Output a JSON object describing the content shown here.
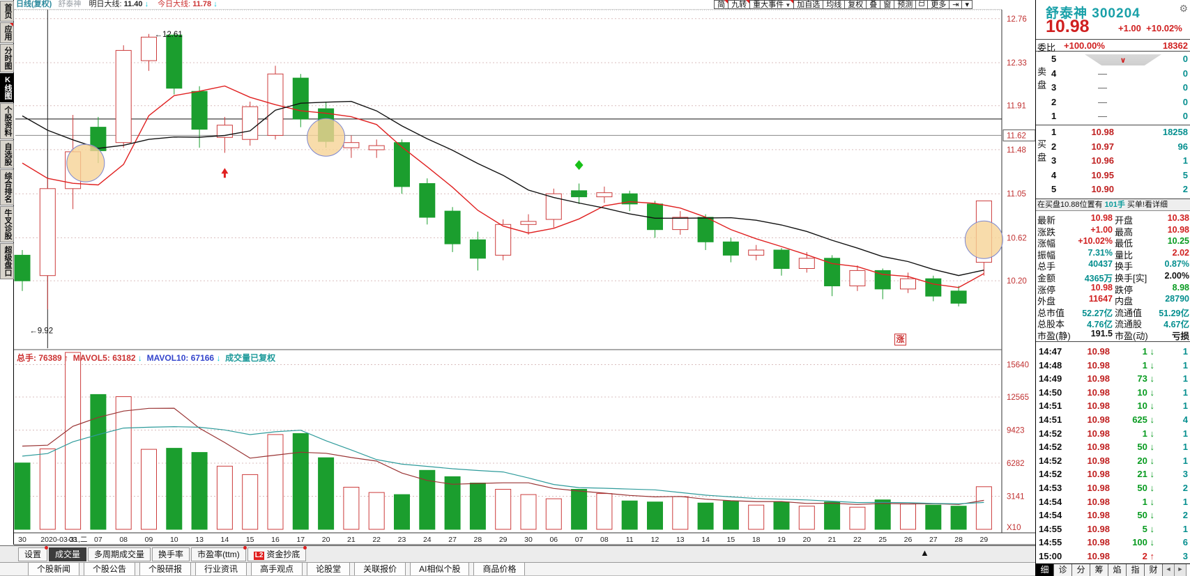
{
  "header": {
    "period_label": "日线(复权)",
    "watermark": "舒泰神",
    "t1_label": "明日大线:",
    "t1_value": "11.40",
    "t1_arrow": "↓",
    "t2_label": "今日大线:",
    "t2_value": "11.78",
    "t2_arrow": "↓"
  },
  "toolbar": {
    "buttons": [
      {
        "label": "简",
        "badge": true
      },
      {
        "label": "九转",
        "badge": true
      },
      {
        "label": "重大事件",
        "badge": true,
        "caret": true
      },
      {
        "label": "加自选"
      },
      {
        "label": "均线"
      },
      {
        "label": "复权"
      },
      {
        "label": "叠"
      },
      {
        "label": "窗"
      },
      {
        "label": "预测"
      },
      {
        "label": "",
        "icon": "lock-icon"
      },
      {
        "label": "更多"
      },
      {
        "label": "⇥",
        "icon": "jump-icon"
      },
      {
        "label": "▾",
        "icon": "dropdown-icon"
      }
    ]
  },
  "sidebar": {
    "items": [
      {
        "label": "首页"
      },
      {
        "label": "应用",
        "badge": true
      },
      {
        "label": "分时图"
      },
      {
        "label": "K线图",
        "selected": true
      },
      {
        "label": "个股资料"
      },
      {
        "label": "自选股"
      },
      {
        "label": "综合排名"
      },
      {
        "label": "牛叉诊股"
      },
      {
        "label": "超级盘口"
      }
    ]
  },
  "chart_data": {
    "type": "candlestick",
    "title": "舒泰神 300204 日线(复权)",
    "price_axis_ticks": [
      12.76,
      12.33,
      11.91,
      11.48,
      11.05,
      10.62,
      10.2
    ],
    "boxed_axis_price": 11.62,
    "today_line_price": 11.78,
    "volume_axis_ticks": [
      15640,
      12565,
      9423,
      6282,
      3141
    ],
    "volume_multiplier": "X10",
    "cursor_index": 1,
    "dates": [
      "30",
      "2020-03-31,二",
      "03",
      "07",
      "08",
      "09",
      "10",
      "13",
      "14",
      "15",
      "16",
      "17",
      "20",
      "21",
      "22",
      "23",
      "24",
      "27",
      "28",
      "29",
      "30",
      "06",
      "07",
      "08",
      "11",
      "12",
      "13",
      "14",
      "15",
      "18",
      "19",
      "20",
      "21",
      "22",
      "25",
      "26",
      "27",
      "28",
      "29"
    ],
    "candles": [
      {
        "o": 10.45,
        "c": 10.2,
        "h": 10.5,
        "l": 10.1,
        "v": 6300
      },
      {
        "o": 10.25,
        "c": 11.1,
        "h": 11.2,
        "l": 9.92,
        "v": 7639
      },
      {
        "o": 11.1,
        "c": 11.46,
        "h": 11.82,
        "l": 10.9,
        "v": 16800
      },
      {
        "o": 11.7,
        "c": 11.47,
        "h": 11.8,
        "l": 11.35,
        "v": 12800
      },
      {
        "o": 11.55,
        "c": 12.45,
        "h": 12.5,
        "l": 11.5,
        "v": 12600
      },
      {
        "o": 12.35,
        "c": 12.58,
        "h": 12.61,
        "l": 12.25,
        "v": 7600
      },
      {
        "o": 12.6,
        "c": 12.08,
        "h": 12.62,
        "l": 12.02,
        "v": 7700
      },
      {
        "o": 12.05,
        "c": 11.68,
        "h": 12.1,
        "l": 11.5,
        "v": 7300
      },
      {
        "o": 11.6,
        "c": 11.72,
        "h": 11.8,
        "l": 11.45,
        "v": 6000
      },
      {
        "o": 11.58,
        "c": 11.9,
        "h": 11.95,
        "l": 11.52,
        "v": 5200
      },
      {
        "o": 11.62,
        "c": 12.22,
        "h": 12.3,
        "l": 11.58,
        "v": 9000
      },
      {
        "o": 12.18,
        "c": 11.78,
        "h": 12.22,
        "l": 11.7,
        "v": 9100
      },
      {
        "o": 11.88,
        "c": 11.56,
        "h": 11.95,
        "l": 11.5,
        "v": 6800
      },
      {
        "o": 11.5,
        "c": 11.55,
        "h": 11.62,
        "l": 11.4,
        "v": 4000
      },
      {
        "o": 11.48,
        "c": 11.52,
        "h": 11.58,
        "l": 11.4,
        "v": 3500
      },
      {
        "o": 11.55,
        "c": 11.12,
        "h": 11.58,
        "l": 11.05,
        "v": 3300
      },
      {
        "o": 11.15,
        "c": 10.82,
        "h": 11.2,
        "l": 10.75,
        "v": 5600
      },
      {
        "o": 10.88,
        "c": 10.56,
        "h": 10.92,
        "l": 10.48,
        "v": 5000
      },
      {
        "o": 10.6,
        "c": 10.42,
        "h": 10.68,
        "l": 10.3,
        "v": 4400
      },
      {
        "o": 10.45,
        "c": 10.75,
        "h": 10.8,
        "l": 10.4,
        "v": 3800
      },
      {
        "o": 10.75,
        "c": 10.78,
        "h": 10.85,
        "l": 10.65,
        "v": 3300
      },
      {
        "o": 10.8,
        "c": 11.05,
        "h": 11.1,
        "l": 10.72,
        "v": 2900
      },
      {
        "o": 11.08,
        "c": 11.02,
        "h": 11.15,
        "l": 10.95,
        "v": 3800
      },
      {
        "o": 11.02,
        "c": 11.06,
        "h": 11.12,
        "l": 10.96,
        "v": 3400
      },
      {
        "o": 11.05,
        "c": 10.95,
        "h": 11.08,
        "l": 10.88,
        "v": 2700
      },
      {
        "o": 10.95,
        "c": 10.7,
        "h": 10.98,
        "l": 10.62,
        "v": 2600
      },
      {
        "o": 10.7,
        "c": 10.82,
        "h": 10.88,
        "l": 10.65,
        "v": 3100
      },
      {
        "o": 10.82,
        "c": 10.58,
        "h": 10.85,
        "l": 10.5,
        "v": 2500
      },
      {
        "o": 10.58,
        "c": 10.45,
        "h": 10.62,
        "l": 10.38,
        "v": 2700
      },
      {
        "o": 10.45,
        "c": 10.5,
        "h": 10.55,
        "l": 10.4,
        "v": 2300
      },
      {
        "o": 10.5,
        "c": 10.32,
        "h": 10.52,
        "l": 10.25,
        "v": 2600
      },
      {
        "o": 10.32,
        "c": 10.42,
        "h": 10.48,
        "l": 10.28,
        "v": 2200
      },
      {
        "o": 10.42,
        "c": 10.15,
        "h": 10.45,
        "l": 10.05,
        "v": 2600
      },
      {
        "o": 10.15,
        "c": 10.3,
        "h": 10.35,
        "l": 10.1,
        "v": 2100
      },
      {
        "o": 10.3,
        "c": 10.12,
        "h": 10.32,
        "l": 10.02,
        "v": 2800
      },
      {
        "o": 10.12,
        "c": 10.22,
        "h": 10.28,
        "l": 10.08,
        "v": 2400
      },
      {
        "o": 10.22,
        "c": 10.05,
        "h": 10.25,
        "l": 10.0,
        "v": 2300
      },
      {
        "o": 10.1,
        "c": 9.98,
        "h": 10.15,
        "l": 9.95,
        "v": 2200
      },
      {
        "o": 10.38,
        "c": 10.98,
        "h": 10.98,
        "l": 10.25,
        "v": 4044
      }
    ],
    "ma_seed_prices": [
      12.5,
      12.4,
      12.3,
      12.15,
      12.0,
      11.85,
      11.7,
      11.55,
      11.45
    ],
    "ma_seed_volumes": [
      5200,
      5600,
      6000,
      6400,
      6800,
      7200,
      7800,
      8600,
      9600
    ],
    "annotations": [
      {
        "text": "12.61",
        "index": 5,
        "price": 12.61,
        "pos": "high"
      },
      {
        "text": "9.92",
        "index": 1,
        "price": 9.92,
        "pos": "low"
      }
    ],
    "markers": [
      {
        "type": "red-up-arrow",
        "index": 8,
        "price": 11.26
      },
      {
        "type": "green-diamond",
        "index": 22,
        "price": 11.33
      }
    ],
    "pattern_circles": [
      {
        "index": 2.5,
        "price": 11.35
      },
      {
        "index": 12.0,
        "price": 11.6
      },
      {
        "index": 38.0,
        "price": 10.6
      }
    ]
  },
  "volume_header": {
    "zs_label": "总手:",
    "zs_value": "76389",
    "zs_arrow": "↑",
    "m5_label": "MAVOL5:",
    "m5_value": "63182",
    "m5_arrow": "↓",
    "m10_label": "MAVOL10:",
    "m10_value": "67166",
    "m10_arrow": "↓",
    "note": "成交量已复权"
  },
  "chart_extras": {
    "rise_badge": "涨",
    "expand_arrow": "▲"
  },
  "bottom_tabs": [
    {
      "label": "设置",
      "dot": true
    },
    {
      "label": "成交量",
      "selected": true
    },
    {
      "label": "多周期成交量"
    },
    {
      "label": "换手率"
    },
    {
      "label": "市盈率(ttm)",
      "dot": true
    },
    {
      "label": "资金抄底",
      "l2": "L2",
      "dot": true
    }
  ],
  "bottom_menu": [
    "个股新闻",
    "个股公告",
    "个股研报",
    "行业资讯",
    "高手观点",
    "论股堂",
    "关联报价",
    "AI相似个股",
    "商品价格"
  ],
  "quote_panel": {
    "name": "舒泰神",
    "code": "300204",
    "gear_icon": "⚙",
    "price": "10.98",
    "change": "+1.00",
    "change_pct": "+10.02%",
    "weibi_label": "委比",
    "weibi_value": "+100.00%",
    "weicha_value": "18362",
    "sell_label": "卖盘",
    "buy_label": "买盘",
    "sell_rows": [
      {
        "level": "5",
        "price": "",
        "vol": "0",
        "chevron": "∨"
      },
      {
        "level": "4",
        "price": "—",
        "vol": "0"
      },
      {
        "level": "3",
        "price": "—",
        "vol": "0"
      },
      {
        "level": "2",
        "price": "—",
        "vol": "0"
      },
      {
        "level": "1",
        "price": "—",
        "vol": "0"
      }
    ],
    "buy_rows": [
      {
        "level": "1",
        "price": "10.98",
        "vol": "18258"
      },
      {
        "level": "2",
        "price": "10.97",
        "vol": "96"
      },
      {
        "level": "3",
        "price": "10.96",
        "vol": "1"
      },
      {
        "level": "4",
        "price": "10.95",
        "vol": "5"
      },
      {
        "level": "5",
        "price": "10.90",
        "vol": "2"
      }
    ],
    "notice_pre": "在买盘10.88位置有",
    "notice_mid": "101手",
    "notice_post": "买单!看详细",
    "stats": [
      {
        "l1": "最新",
        "v1": "10.98",
        "c1": "red",
        "l2": "开盘",
        "v2": "10.38",
        "c2": "red"
      },
      {
        "l1": "涨跌",
        "v1": "+1.00",
        "c1": "red",
        "l2": "最高",
        "v2": "10.98",
        "c2": "red"
      },
      {
        "l1": "涨幅",
        "v1": "+10.02%",
        "c1": "red",
        "l2": "最低",
        "v2": "10.25",
        "c2": "grn"
      },
      {
        "l1": "振幅",
        "v1": "7.31%",
        "c1": "teal",
        "l2": "量比",
        "v2": "2.02",
        "c2": "red"
      },
      {
        "l1": "总手",
        "v1": "40437",
        "c1": "teal",
        "l2": "换手",
        "v2": "0.87%",
        "c2": "teal"
      },
      {
        "l1": "金额",
        "v1": "4365万",
        "c1": "teal",
        "l2": "换手[实]",
        "v2": "2.00%",
        "c2": "blk"
      },
      {
        "l1": "涨停",
        "v1": "10.98",
        "c1": "red",
        "l2": "跌停",
        "v2": "8.98",
        "c2": "grn"
      },
      {
        "l1": "外盘",
        "v1": "11647",
        "c1": "red",
        "l2": "内盘",
        "v2": "28790",
        "c2": "teal"
      },
      {
        "l1": "总市值",
        "v1": "52.27亿",
        "c1": "teal",
        "l2": "流通值",
        "v2": "51.29亿",
        "c2": "teal"
      },
      {
        "l1": "总股本",
        "v1": "4.76亿",
        "c1": "teal",
        "l2": "流通股",
        "v2": "4.67亿",
        "c2": "teal"
      },
      {
        "l1": "市盈(静)",
        "v1": "191.5",
        "c1": "blk",
        "l2": "市盈(动)",
        "v2": "亏损",
        "c2": "blk"
      }
    ],
    "ticks": [
      {
        "t": "14:47",
        "p": "10.98",
        "v": "1",
        "dir": "down",
        "n": "1"
      },
      {
        "t": "14:48",
        "p": "10.98",
        "v": "1",
        "dir": "down",
        "n": "1"
      },
      {
        "t": "14:49",
        "p": "10.98",
        "v": "73",
        "dir": "down",
        "n": "1"
      },
      {
        "t": "14:50",
        "p": "10.98",
        "v": "10",
        "dir": "down",
        "n": "1"
      },
      {
        "t": "14:51",
        "p": "10.98",
        "v": "10",
        "dir": "down",
        "n": "1"
      },
      {
        "t": "14:51",
        "p": "10.98",
        "v": "625",
        "dir": "down",
        "n": "4"
      },
      {
        "t": "14:52",
        "p": "10.98",
        "v": "1",
        "dir": "down",
        "n": "1"
      },
      {
        "t": "14:52",
        "p": "10.98",
        "v": "50",
        "dir": "down",
        "n": "1"
      },
      {
        "t": "14:52",
        "p": "10.98",
        "v": "20",
        "dir": "down",
        "n": "1"
      },
      {
        "t": "14:52",
        "p": "10.98",
        "v": "21",
        "dir": "down",
        "n": "3"
      },
      {
        "t": "14:53",
        "p": "10.98",
        "v": "50",
        "dir": "down",
        "n": "2"
      },
      {
        "t": "14:54",
        "p": "10.98",
        "v": "1",
        "dir": "down",
        "n": "1"
      },
      {
        "t": "14:54",
        "p": "10.98",
        "v": "50",
        "dir": "down",
        "n": "2"
      },
      {
        "t": "14:55",
        "p": "10.98",
        "v": "5",
        "dir": "down",
        "n": "1"
      },
      {
        "t": "14:55",
        "p": "10.98",
        "v": "100",
        "dir": "down",
        "n": "6"
      },
      {
        "t": "15:00",
        "p": "10.98",
        "v": "2",
        "dir": "up",
        "n": "3"
      }
    ],
    "tabs": [
      {
        "label": "细",
        "selected": true
      },
      {
        "label": "诊"
      },
      {
        "label": "分"
      },
      {
        "label": "筹"
      },
      {
        "label": "焰"
      },
      {
        "label": "指"
      },
      {
        "label": "财"
      }
    ],
    "nav_prev": "◄",
    "nav_next": "►"
  }
}
